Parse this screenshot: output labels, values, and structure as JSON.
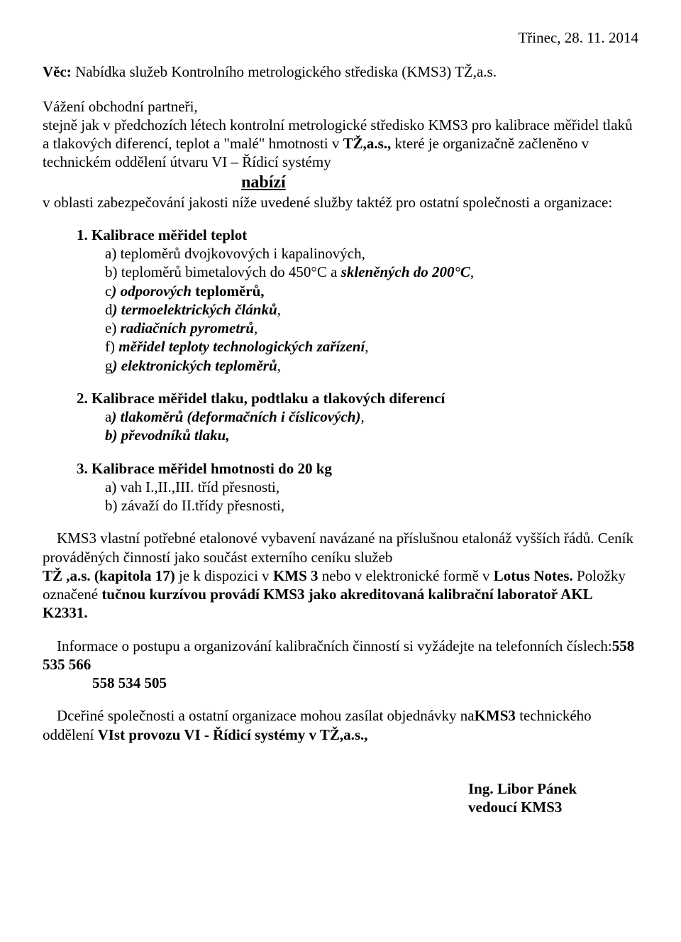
{
  "colors": {
    "background": "#ffffff",
    "text": "#000000"
  },
  "font": {
    "family": "Times New Roman",
    "base_size_pt": 16
  },
  "date": "Třinec, 28. 11. 2014",
  "subject_label": "Věc:",
  "subject_text": " Nabídka služeb Kontrolního metrologického střediska (KMS3) TŽ,a.s.",
  "intro": {
    "p1": "Vážení obchodní partneři,",
    "p2a": "stejně jak v předchozích létech  kontrolní metrologické středisko KMS3 pro kalibrace měřidel tlaků a tlakových diferencí, teplot a \"malé\" hmotnosti  v ",
    "p2b_bold": "TŽ,a.s.,",
    "p2c": "  které je organizačně  začleněno v technickém oddělení útvaru  VI – Řídicí  systémy",
    "nabizi": "nabízí",
    "p3": "v oblasti zabezpečování jakosti níže uvedené služby taktéž pro ostatní společnosti a organizace:"
  },
  "section1": {
    "head": "1. Kalibrace měřidel teplot",
    "a": "a) teploměrů dvojkovových i kapalinových,",
    "b_plain": " b) teploměrů bimetalových do 450°C a ",
    "b_bi": "skleněných do 200°C",
    "b_tail": ",",
    "c_pre": "c",
    "c_bi": ") odporových",
    "c_bold": " teploměrů,",
    "d_pre": "d",
    "d_bi": ") termoelektrických článků",
    "d_tail": ",",
    "e_plain": "e) ",
    "e_bi": "radiačních pyrometrů",
    "e_tail": ",",
    "f_plain": "f) ",
    "f_bi": "měřidel teploty technologických zařízení",
    "f_tail": ",",
    "g_pre": "g",
    "g_bi": ") elektronických teploměrů",
    "g_tail": ","
  },
  "section2": {
    "head": "2. Kalibrace  měřidel tlaku, podtlaku a tlakových diferencí",
    "a_pre": "a",
    "a_bi": ") tlakoměrů (deformačních i číslicových)",
    "a_tail": ",",
    "b_bi": "b) převodníků tlaku,"
  },
  "section3": {
    "head": "3. Kalibrace měřidel hmotnosti do 20 kg",
    "a": "a) vah I.,II.,III. tříd přesnosti,",
    "b": "b) závaží do II.třídy přesnosti,"
  },
  "closing1": {
    "a": "KMS3 vlastní potřebné etalonové vybavení navázané na příslušnou etalonáž vyšších řádů.  Ceník prováděných  činností jako  součást externího ceníku služeb ",
    "b_bold": "TŽ ,a.s. (kapitola 17)",
    "c": " je  k dispozici v ",
    "d_bold": "KMS 3",
    "e": " nebo v elektronické formě v ",
    "f_bold": "Lotus Notes.",
    "g": " Položky označené ",
    "h_bold": "tučnou kurzívou provádí KMS3 jako akreditovaná kalibrační laboratoř AKL K2331."
  },
  "closing2": {
    "t1": "Informace o postupu a organizování kalibračních  činností  si vyžádejte na telefonních číslech: ",
    "phone1": "558 535 566",
    "phone2": "558 534 505"
  },
  "closing3": {
    "t1": "Dceřiné společnosti a ostatní organizace mohou zasílat objednávky  na ",
    "b1": "KMS3",
    "t2": " technického oddělení ",
    "b2": "VIst  provozu VI - Řídicí systémy v TŽ,a.s.,"
  },
  "signature": {
    "name": "Ing. Libor Pánek",
    "title": "vedoucí KMS3"
  }
}
